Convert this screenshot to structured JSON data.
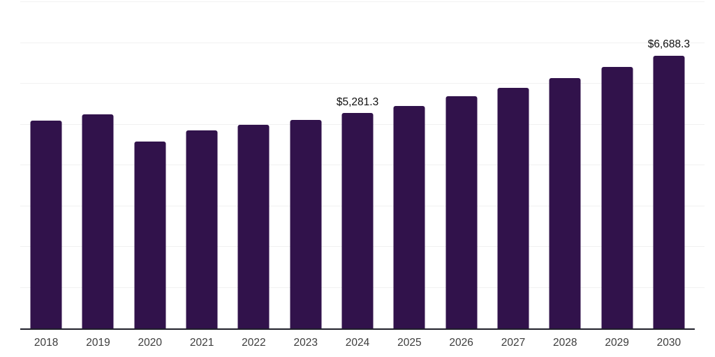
{
  "chart_data": {
    "type": "bar",
    "title": "",
    "xlabel": "",
    "ylabel": "",
    "categories": [
      "2018",
      "2019",
      "2020",
      "2021",
      "2022",
      "2023",
      "2024",
      "2025",
      "2026",
      "2027",
      "2028",
      "2029",
      "2030"
    ],
    "values": [
      5100,
      5240,
      4590,
      4860,
      5000,
      5115,
      5281.3,
      5460,
      5700,
      5900,
      6140,
      6415,
      6688.3
    ],
    "data_labels": [
      "",
      "",
      "",
      "",
      "",
      "",
      "$5,281.3",
      "",
      "",
      "",
      "",
      "",
      "$6,688.3"
    ],
    "ylim": [
      0,
      8000
    ],
    "gridline_interval": 1000,
    "grid": "horizontal",
    "legend": "none",
    "colors": {
      "bar": "#31124b",
      "gridline": "#f1f1f1",
      "axis_line": "#20202a",
      "tick_label": "#3d3d3d",
      "data_label": "#0f0f0f",
      "background": "#ffffff"
    }
  }
}
